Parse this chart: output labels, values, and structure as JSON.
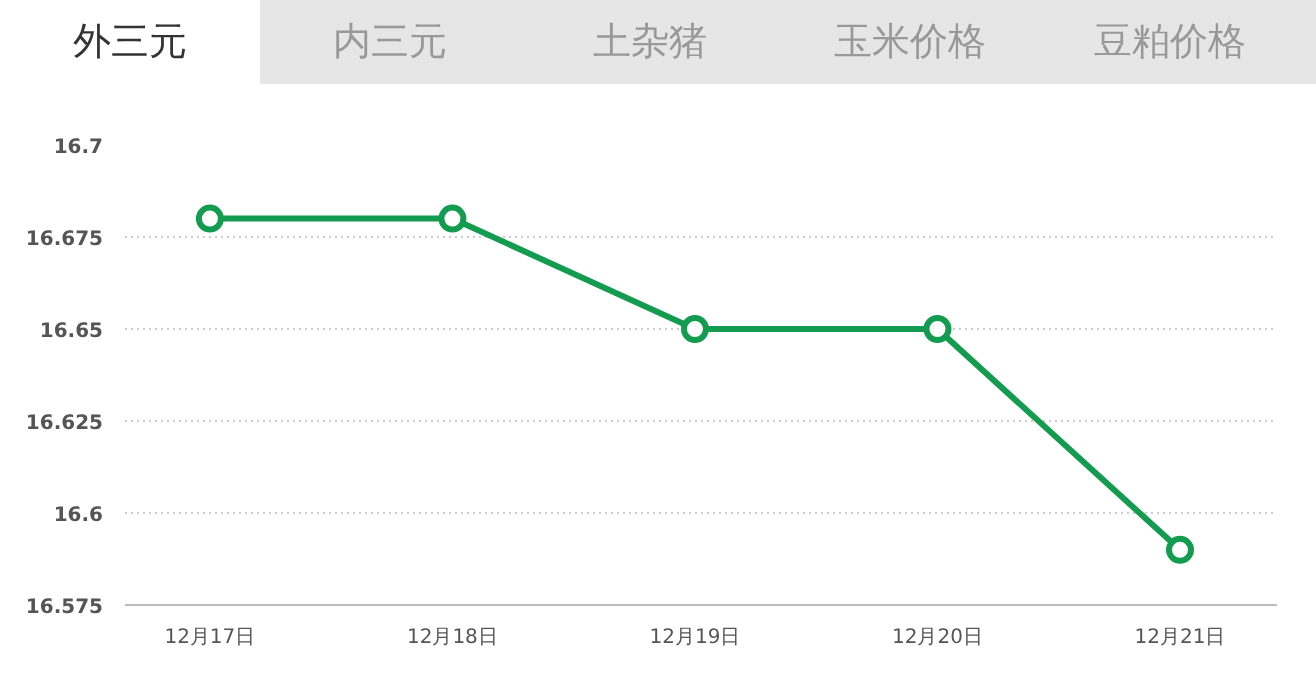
{
  "chart_data": {
    "type": "line",
    "categories": [
      "12月17日",
      "12月18日",
      "12月19日",
      "12月20日",
      "12月21日"
    ],
    "series": [
      {
        "color": "#139c4f",
        "values": [
          16.68,
          16.68,
          16.65,
          16.65,
          16.59
        ]
      }
    ],
    "ylim": [
      16.575,
      16.7
    ],
    "yticks": [
      {
        "value": 16.575,
        "label": "16.575"
      },
      {
        "value": 16.6,
        "label": "16.6"
      },
      {
        "value": 16.625,
        "label": "16.625"
      },
      {
        "value": 16.65,
        "label": "16.65"
      },
      {
        "value": 16.675,
        "label": "16.675"
      },
      {
        "value": 16.7,
        "label": "16.7"
      }
    ],
    "grid": "y",
    "marker": "circle",
    "annotations": [
      "外三元",
      "内三元",
      "土杂猪",
      "玉米价格",
      "豆粕价格"
    ]
  }
}
